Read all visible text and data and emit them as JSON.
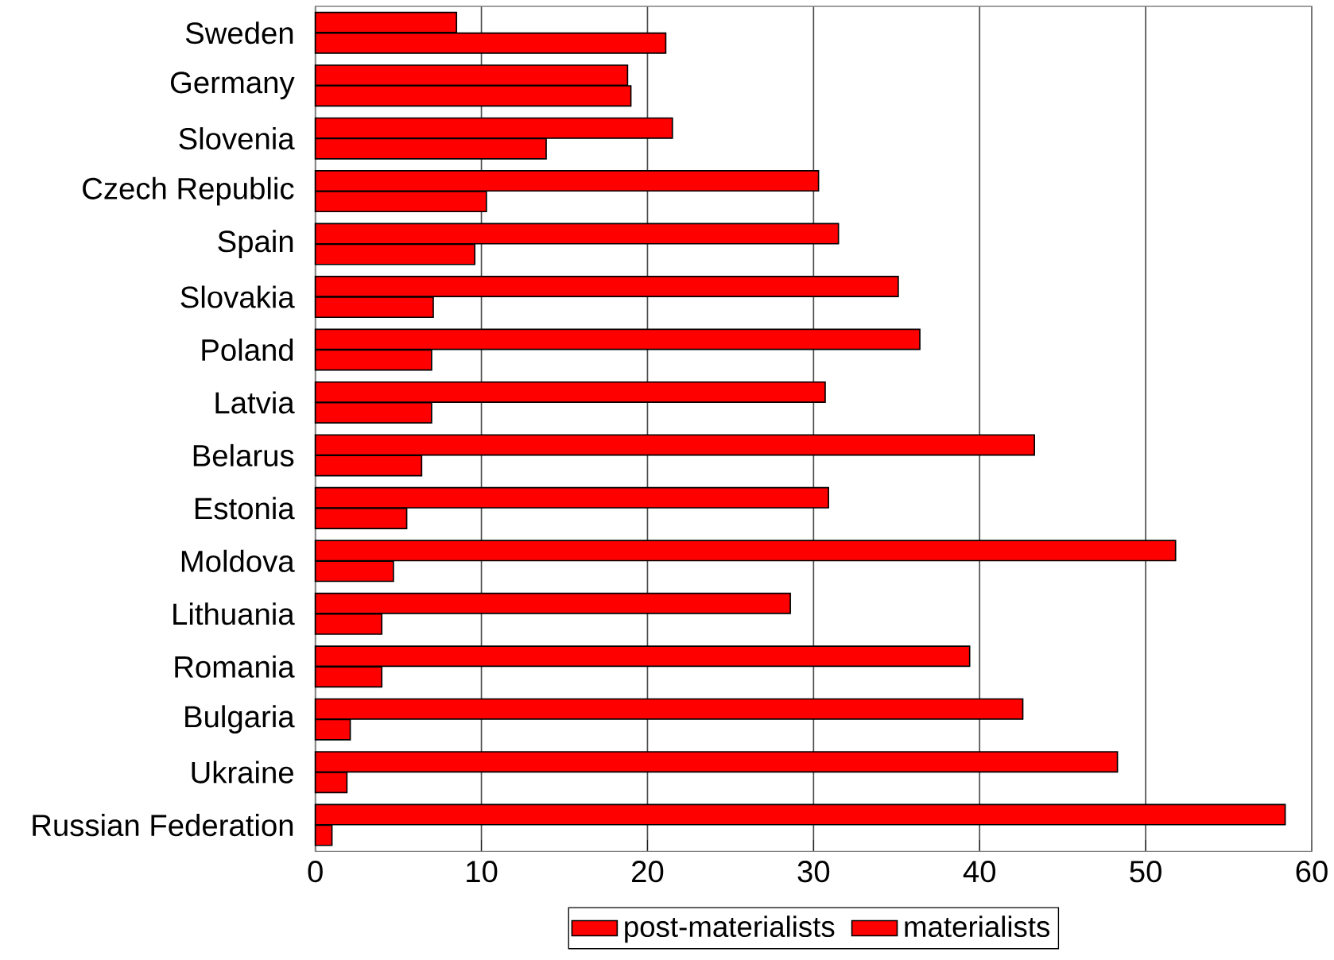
{
  "chart_data": {
    "type": "bar",
    "orientation": "horizontal",
    "categories": [
      "Sweden",
      "Germany",
      "Slovenia",
      "Czech Republic",
      "Spain",
      "Slovakia",
      "Poland",
      "Latvia",
      "Belarus",
      "Estonia",
      "Moldova",
      "Lithuania",
      "Romania",
      "Bulgaria",
      "Ukraine",
      "Russian Federation"
    ],
    "series": [
      {
        "name": "post-materialists",
        "color": "#ff0000",
        "values": [
          8.5,
          18.8,
          21.5,
          30.3,
          31.5,
          35.1,
          36.4,
          30.7,
          43.3,
          30.9,
          51.8,
          28.6,
          39.4,
          42.6,
          48.3,
          58.4
        ]
      },
      {
        "name": "materialists",
        "color": "#ff0000",
        "values": [
          21.1,
          19.0,
          13.9,
          10.3,
          9.6,
          7.1,
          7.0,
          7.0,
          6.4,
          5.5,
          4.7,
          4.0,
          4.0,
          2.1,
          1.9,
          1.0
        ]
      }
    ],
    "xlim": [
      0,
      60
    ],
    "xticks": [
      0,
      10,
      20,
      30,
      40,
      50,
      60
    ],
    "grid": "x",
    "legend": "bottom"
  }
}
